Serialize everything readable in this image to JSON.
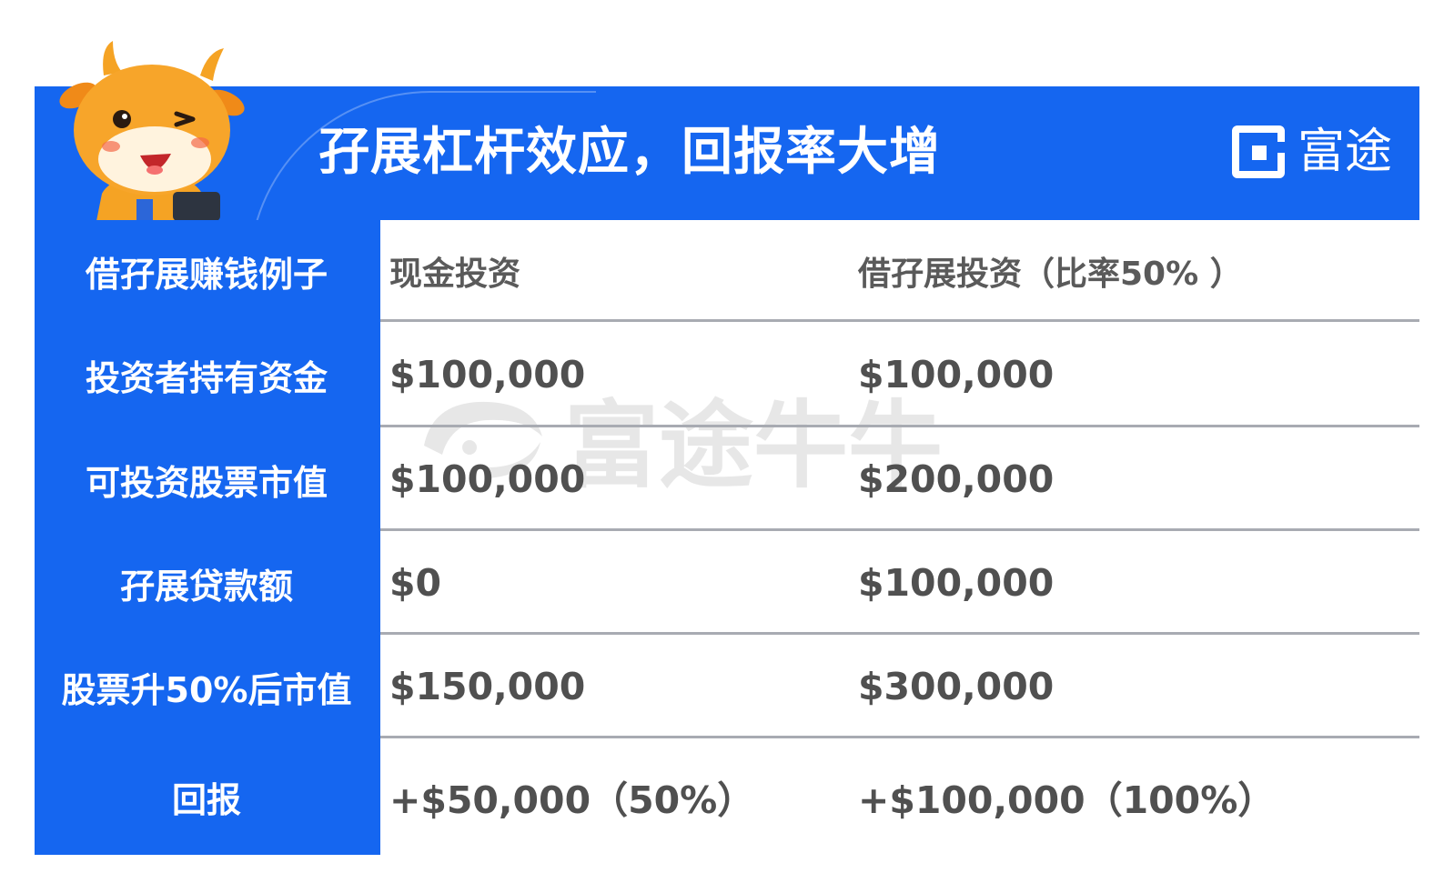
{
  "banner": {
    "title": "孖展杠杆效应，回报率大增",
    "brand": "富途",
    "color": "#1566f0"
  },
  "watermark": {
    "text": "富途牛牛"
  },
  "table": {
    "header": {
      "label": "借孖展赚钱例子",
      "col1": "现金投资",
      "col2": "借孖展投资（比率50% ）"
    },
    "rows": [
      {
        "label": "投资者持有资金",
        "col1": "$100,000",
        "col2": "$100,000"
      },
      {
        "label": "可投资股票市值",
        "col1": "$100,000",
        "col2": "$200,000"
      },
      {
        "label": "孖展贷款额",
        "col1": "$0",
        "col2": "$100,000"
      },
      {
        "label": "股票升50%后市值",
        "col1": "$150,000",
        "col2": "$300,000"
      },
      {
        "label": "回报",
        "col1": "+$50,000（50%）",
        "col2": "+$100,000（100%）"
      }
    ]
  },
  "icons": {
    "mascot": "cow-mascot-icon",
    "logo": "futu-logo-icon"
  }
}
